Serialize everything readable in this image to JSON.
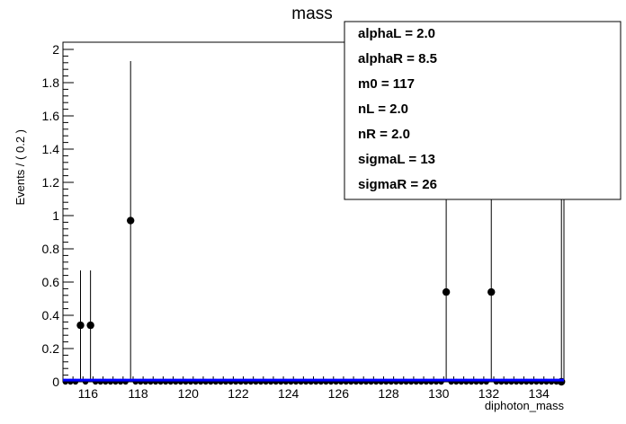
{
  "chart_data": {
    "type": "scatter",
    "title": "mass",
    "xlabel": "diphoton_mass",
    "ylabel": "Events / ( 0.2 )",
    "xlim": [
      115.0,
      135.0
    ],
    "ylim": [
      0,
      2.0
    ],
    "x_ticks": [
      116,
      118,
      120,
      122,
      124,
      126,
      128,
      130,
      132,
      134
    ],
    "x_tick_labels": [
      "116",
      "118",
      "120",
      "122",
      "124",
      "126",
      "128",
      "130",
      "132",
      "134"
    ],
    "y_ticks": [
      0,
      0.2,
      0.4,
      0.6,
      0.8,
      1.0,
      1.2,
      1.4,
      1.6,
      1.8,
      2.0
    ],
    "y_tick_labels": [
      "0",
      "0.2",
      "0.4",
      "0.6",
      "0.8",
      "1",
      "1.2",
      "1.4",
      "1.6",
      "1.8",
      "2"
    ],
    "bin_width": 0.2,
    "points": [
      {
        "x": 115.7,
        "y": 0.34,
        "err_up": 0.33
      },
      {
        "x": 116.1,
        "y": 0.34,
        "err_up": 0.33
      },
      {
        "x": 117.7,
        "y": 0.97,
        "err_up": 0.96
      },
      {
        "x": 130.3,
        "y": 0.54,
        "err_up": 1.46
      },
      {
        "x": 132.1,
        "y": 0.54,
        "err_up": 1.46
      },
      {
        "x": 134.9,
        "y": 0.0,
        "err_up": 2.0
      }
    ],
    "fit_curve": {
      "color": "#0000ff",
      "y": 0.01
    },
    "grid": false
  },
  "params": [
    {
      "label": "alphaL =  2.0"
    },
    {
      "label": "alphaR =  8.5"
    },
    {
      "label": "m0 =  117"
    },
    {
      "label": "nL =  2.0"
    },
    {
      "label": "nR =  2.0"
    },
    {
      "label": "sigmaL =  13"
    },
    {
      "label": "sigmaR =  26"
    }
  ]
}
